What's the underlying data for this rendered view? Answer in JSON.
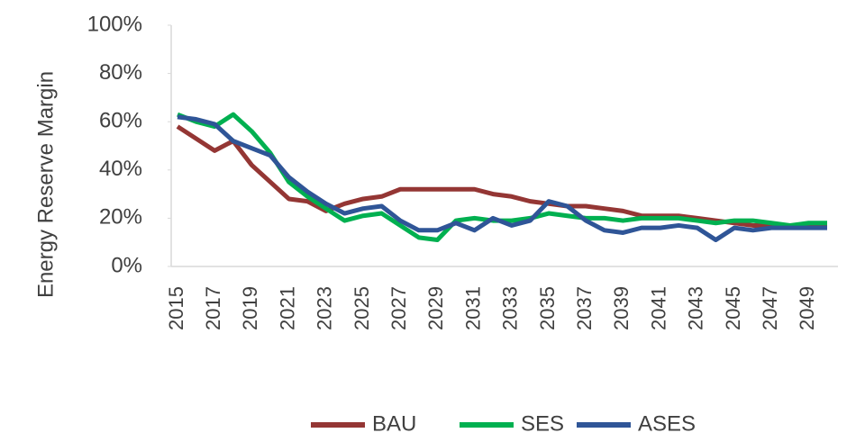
{
  "chart_data": {
    "type": "line",
    "y_label": "Energy Reserve Margin",
    "categories": [
      "2015",
      null,
      "2017",
      null,
      "2019",
      null,
      "2021",
      null,
      "2023",
      null,
      "2025",
      null,
      "2027",
      null,
      "2029",
      null,
      "2031",
      null,
      "2033",
      null,
      "2035",
      null,
      "2037",
      null,
      "2039",
      null,
      "2041",
      null,
      "2043",
      null,
      "2045",
      null,
      "2047",
      null,
      "2049",
      null
    ],
    "series": [
      {
        "name": "BAU",
        "color": "#943634",
        "values": [
          58,
          53,
          48,
          52,
          42,
          35,
          28,
          27,
          23,
          26,
          28,
          29,
          32,
          32,
          32,
          32,
          32,
          30,
          29,
          27,
          26,
          25,
          25,
          24,
          23,
          21,
          21,
          21,
          20,
          19,
          18,
          17,
          17,
          17,
          17,
          17
        ]
      },
      {
        "name": "SES",
        "color": "#00b050",
        "values": [
          63,
          60,
          58,
          63,
          56,
          47,
          35,
          29,
          24,
          19,
          21,
          22,
          17,
          12,
          11,
          19,
          20,
          19,
          19,
          20,
          22,
          21,
          20,
          20,
          19,
          20,
          20,
          20,
          19,
          18,
          19,
          19,
          18,
          17,
          18,
          18
        ]
      },
      {
        "name": "ASES",
        "color": "#2f5597",
        "values": [
          62,
          61,
          59,
          52,
          49,
          46,
          37,
          31,
          26,
          22,
          24,
          25,
          19,
          15,
          15,
          18,
          15,
          20,
          17,
          19,
          27,
          25,
          19,
          15,
          14,
          16,
          16,
          17,
          16,
          11,
          16,
          15,
          16,
          16,
          16,
          16
        ]
      }
    ],
    "ylim": [
      0,
      100
    ],
    "yticks": [
      {
        "value": 0,
        "label": "0%"
      },
      {
        "value": 20,
        "label": "20%"
      },
      {
        "value": 40,
        "label": "40%"
      },
      {
        "value": 60,
        "label": "60%"
      },
      {
        "value": 80,
        "label": "80%"
      },
      {
        "value": 100,
        "label": "100%"
      }
    ],
    "grid": false,
    "legend": "bottom"
  }
}
